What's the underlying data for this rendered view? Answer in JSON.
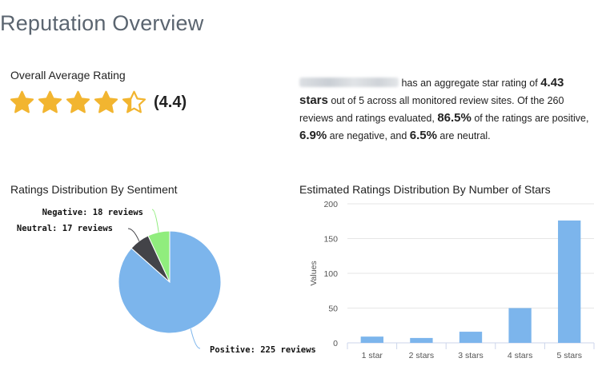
{
  "page": {
    "title": "Reputation Overview",
    "overall_label": "Overall Average Rating",
    "overall_value": "(4.4)"
  },
  "rating": {
    "value": 4.4,
    "max": 5,
    "star_color": "#f2b530"
  },
  "summary": {
    "p1": " has an aggregate star rating of ",
    "stars_value": "4.43 stars",
    "p2": " out of 5 across all monitored review sites. Of the 260 reviews and ratings evaluated, ",
    "positive_pct": "86.5%",
    "p3": " of the ratings are positive, ",
    "negative_pct": "6.9%",
    "p4": " are negative, and ",
    "neutral_pct": "6.5%",
    "p5": " are neutral."
  },
  "sentiment_title": "Ratings Distribution By Sentiment",
  "stars_title": "Estimated Ratings Distribution By Number of Stars",
  "chart_data": [
    {
      "type": "pie",
      "title": "Ratings Distribution By Sentiment",
      "slices": [
        {
          "name": "Positive",
          "value": 225,
          "label": "Positive: 225 reviews",
          "color": "#7cb5ec"
        },
        {
          "name": "Neutral",
          "value": 17,
          "label": "Neutral: 17 reviews",
          "color": "#434348"
        },
        {
          "name": "Negative",
          "value": 18,
          "label": "Negative: 18 reviews",
          "color": "#90ed7d"
        }
      ]
    },
    {
      "type": "bar",
      "title": "Estimated Ratings Distribution By Number of Stars",
      "categories": [
        "1 star",
        "2 stars",
        "3 stars",
        "4 stars",
        "5 stars"
      ],
      "values": [
        9,
        7,
        16,
        50,
        176
      ],
      "ylabel": "Values",
      "ylim": [
        0,
        200
      ],
      "yticks": [
        0,
        50,
        100,
        150,
        200
      ],
      "color": "#7cb5ec",
      "grid": true
    }
  ]
}
